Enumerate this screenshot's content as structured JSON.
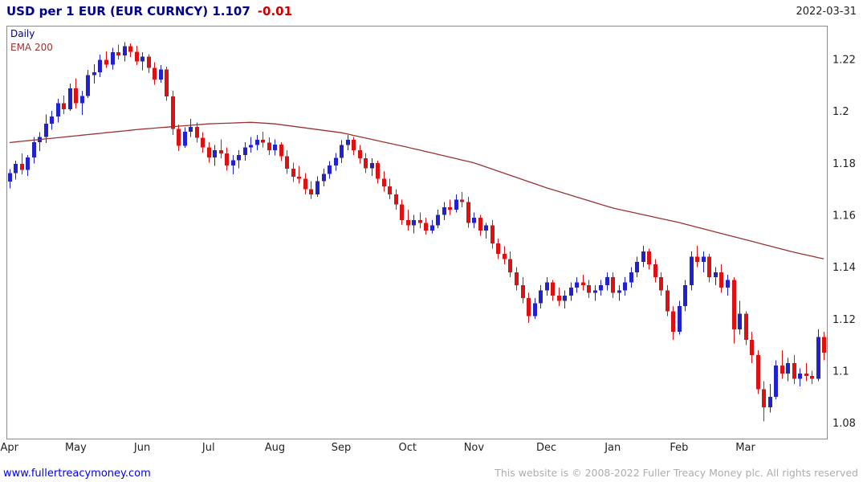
{
  "header": {
    "title": "USD per 1 EUR (EUR CURNCY) 1.107",
    "change": "-0.01",
    "date": "2022-03-31"
  },
  "legend": {
    "series": "Daily",
    "ema": "EMA 200"
  },
  "footer": {
    "site": "www.fullertreacymoney.com",
    "copyright": "This website is © 2008-2022 Fuller Treacy Money plc. All rights reserved"
  },
  "colors": {
    "title": "#00008B",
    "change": "#CC0000",
    "up": "#2222CC",
    "down": "#DD1111",
    "ema": "#993333",
    "axis": "#222222",
    "border": "#8A8A8A",
    "link": "#0000EE",
    "copyright": "#ADADAD"
  },
  "chart_data": {
    "type": "candlestick",
    "title": "USD per 1 EUR (EUR CURNCY)",
    "subtitle": "Daily with EMA 200",
    "last_price": 1.107,
    "change": -0.01,
    "date": "2022-03-31",
    "legend": [
      "Daily",
      "EMA 200"
    ],
    "x_labels": [
      "Apr",
      "May",
      "Jun",
      "Jul",
      "Aug",
      "Sep",
      "Oct",
      "Nov",
      "Dec",
      "Jan",
      "Feb",
      "Mar"
    ],
    "month_start_indices": [
      0,
      11,
      22,
      33,
      44,
      55,
      66,
      77,
      89,
      100,
      111,
      122
    ],
    "y_ticks": [
      1.22,
      1.2,
      1.18,
      1.16,
      1.14,
      1.12,
      1.1,
      1.08
    ],
    "ylim": [
      1.074,
      1.233
    ],
    "grid": false,
    "candles": [
      [
        1.173,
        1.1778,
        1.1704,
        1.1762
      ],
      [
        1.1762,
        1.181,
        1.1738,
        1.1798
      ],
      [
        1.1798,
        1.1838,
        1.1758,
        1.1775
      ],
      [
        1.1775,
        1.1832,
        1.1752,
        1.1822
      ],
      [
        1.1822,
        1.1902,
        1.18,
        1.1882
      ],
      [
        1.1882,
        1.192,
        1.1848,
        1.1901
      ],
      [
        1.1901,
        1.1988,
        1.1878,
        1.1952
      ],
      [
        1.1952,
        1.2002,
        1.193,
        1.1981
      ],
      [
        1.1981,
        1.2048,
        1.1958,
        1.2031
      ],
      [
        1.2031,
        1.2061,
        1.1989,
        1.2009
      ],
      [
        1.2009,
        1.2108,
        1.2002,
        1.2088
      ],
      [
        1.2088,
        1.2128,
        1.2012,
        1.2032
      ],
      [
        1.2032,
        1.208,
        1.1986,
        1.206
      ],
      [
        1.206,
        1.216,
        1.2051,
        1.214
      ],
      [
        1.214,
        1.2182,
        1.2108,
        1.2151
      ],
      [
        1.2151,
        1.2218,
        1.2132,
        1.2198
      ],
      [
        1.2198,
        1.2231,
        1.2168,
        1.218
      ],
      [
        1.218,
        1.2245,
        1.2161,
        1.2228
      ],
      [
        1.2228,
        1.2258,
        1.22,
        1.2216
      ],
      [
        1.2216,
        1.2266,
        1.2192,
        1.2251
      ],
      [
        1.2251,
        1.2262,
        1.2209,
        1.223
      ],
      [
        1.223,
        1.2252,
        1.2178,
        1.2192
      ],
      [
        1.2192,
        1.2228,
        1.2158,
        1.2211
      ],
      [
        1.2211,
        1.222,
        1.2148,
        1.2168
      ],
      [
        1.2168,
        1.219,
        1.2102,
        1.2122
      ],
      [
        1.2122,
        1.2178,
        1.211,
        1.2161
      ],
      [
        1.2161,
        1.2172,
        1.204,
        1.2058
      ],
      [
        1.2058,
        1.208,
        1.191,
        1.1932
      ],
      [
        1.1932,
        1.195,
        1.1848,
        1.1868
      ],
      [
        1.1868,
        1.1938,
        1.186,
        1.1921
      ],
      [
        1.1921,
        1.1971,
        1.1902,
        1.194
      ],
      [
        1.194,
        1.1958,
        1.188,
        1.1898
      ],
      [
        1.1898,
        1.192,
        1.1841,
        1.1861
      ],
      [
        1.1861,
        1.1882,
        1.1802,
        1.1822
      ],
      [
        1.1822,
        1.187,
        1.179,
        1.1851
      ],
      [
        1.1851,
        1.1892,
        1.182,
        1.1838
      ],
      [
        1.1838,
        1.1862,
        1.1772,
        1.1791
      ],
      [
        1.1791,
        1.1832,
        1.1758,
        1.1812
      ],
      [
        1.1812,
        1.1851,
        1.1781,
        1.1832
      ],
      [
        1.1832,
        1.1881,
        1.181,
        1.1862
      ],
      [
        1.1862,
        1.1902,
        1.1841,
        1.1871
      ],
      [
        1.1871,
        1.191,
        1.185,
        1.1891
      ],
      [
        1.1891,
        1.1922,
        1.1862,
        1.188
      ],
      [
        1.188,
        1.19,
        1.1832,
        1.1851
      ],
      [
        1.1851,
        1.1892,
        1.1831,
        1.1872
      ],
      [
        1.1872,
        1.1881,
        1.1808,
        1.1828
      ],
      [
        1.1828,
        1.185,
        1.176,
        1.1779
      ],
      [
        1.1779,
        1.1802,
        1.1728,
        1.1748
      ],
      [
        1.1748,
        1.179,
        1.1722,
        1.1741
      ],
      [
        1.1741,
        1.1762,
        1.168,
        1.17
      ],
      [
        1.17,
        1.1731,
        1.1664,
        1.1681
      ],
      [
        1.1681,
        1.175,
        1.1671,
        1.1731
      ],
      [
        1.1731,
        1.1779,
        1.1711,
        1.176
      ],
      [
        1.176,
        1.1809,
        1.1741,
        1.1791
      ],
      [
        1.1791,
        1.184,
        1.1771,
        1.1821
      ],
      [
        1.1821,
        1.1889,
        1.1801,
        1.1871
      ],
      [
        1.1871,
        1.1909,
        1.1851,
        1.189
      ],
      [
        1.189,
        1.1902,
        1.1832,
        1.1851
      ],
      [
        1.1851,
        1.1871,
        1.18,
        1.182
      ],
      [
        1.182,
        1.184,
        1.1762,
        1.1781
      ],
      [
        1.1781,
        1.182,
        1.1751,
        1.1801
      ],
      [
        1.1801,
        1.1811,
        1.1722,
        1.1741
      ],
      [
        1.1741,
        1.177,
        1.1691,
        1.1711
      ],
      [
        1.1711,
        1.174,
        1.1662,
        1.1681
      ],
      [
        1.1681,
        1.1701,
        1.1622,
        1.1641
      ],
      [
        1.1641,
        1.1661,
        1.1563,
        1.1581
      ],
      [
        1.1581,
        1.1621,
        1.1541,
        1.1561
      ],
      [
        1.1561,
        1.1601,
        1.1531,
        1.1581
      ],
      [
        1.1581,
        1.1611,
        1.1551,
        1.1571
      ],
      [
        1.1571,
        1.1591,
        1.1525,
        1.1541
      ],
      [
        1.1541,
        1.1581,
        1.153,
        1.1561
      ],
      [
        1.1561,
        1.1621,
        1.1551,
        1.1601
      ],
      [
        1.1601,
        1.1651,
        1.1581,
        1.1631
      ],
      [
        1.1631,
        1.1661,
        1.1601,
        1.1621
      ],
      [
        1.1621,
        1.1681,
        1.1611,
        1.1661
      ],
      [
        1.1661,
        1.169,
        1.1631,
        1.1651
      ],
      [
        1.1651,
        1.1671,
        1.1552,
        1.1571
      ],
      [
        1.1571,
        1.1611,
        1.1551,
        1.1591
      ],
      [
        1.1591,
        1.1601,
        1.1521,
        1.1541
      ],
      [
        1.1541,
        1.1571,
        1.1511,
        1.1561
      ],
      [
        1.1561,
        1.1581,
        1.1471,
        1.1491
      ],
      [
        1.1491,
        1.1511,
        1.1431,
        1.1451
      ],
      [
        1.1451,
        1.1481,
        1.1411,
        1.1431
      ],
      [
        1.1431,
        1.1461,
        1.1361,
        1.1381
      ],
      [
        1.1381,
        1.1401,
        1.1311,
        1.1331
      ],
      [
        1.1331,
        1.1361,
        1.1261,
        1.1281
      ],
      [
        1.1281,
        1.1301,
        1.1186,
        1.1211
      ],
      [
        1.1211,
        1.1281,
        1.1201,
        1.1261
      ],
      [
        1.1261,
        1.1331,
        1.1241,
        1.1311
      ],
      [
        1.1311,
        1.1361,
        1.1291,
        1.1341
      ],
      [
        1.1341,
        1.1351,
        1.1271,
        1.1291
      ],
      [
        1.1291,
        1.1321,
        1.1251,
        1.1271
      ],
      [
        1.1271,
        1.1311,
        1.1241,
        1.1291
      ],
      [
        1.1291,
        1.1341,
        1.1271,
        1.1321
      ],
      [
        1.1321,
        1.1361,
        1.1301,
        1.1341
      ],
      [
        1.1341,
        1.1371,
        1.1311,
        1.1331
      ],
      [
        1.1331,
        1.1351,
        1.1281,
        1.1301
      ],
      [
        1.1301,
        1.1331,
        1.1271,
        1.1311
      ],
      [
        1.1311,
        1.1351,
        1.1291,
        1.1331
      ],
      [
        1.1331,
        1.1381,
        1.1311,
        1.1361
      ],
      [
        1.1361,
        1.1381,
        1.1281,
        1.1301
      ],
      [
        1.1301,
        1.1331,
        1.1271,
        1.1311
      ],
      [
        1.1311,
        1.1361,
        1.1291,
        1.1341
      ],
      [
        1.1341,
        1.1401,
        1.1321,
        1.1381
      ],
      [
        1.1381,
        1.1441,
        1.1361,
        1.1421
      ],
      [
        1.1421,
        1.1483,
        1.1401,
        1.1461
      ],
      [
        1.1461,
        1.1471,
        1.1391,
        1.1411
      ],
      [
        1.1411,
        1.1431,
        1.1341,
        1.1361
      ],
      [
        1.1361,
        1.1381,
        1.1291,
        1.1311
      ],
      [
        1.1311,
        1.1331,
        1.1211,
        1.1231
      ],
      [
        1.1231,
        1.1251,
        1.1121,
        1.1151
      ],
      [
        1.1151,
        1.1271,
        1.1141,
        1.1251
      ],
      [
        1.1251,
        1.1351,
        1.1231,
        1.1331
      ],
      [
        1.1331,
        1.1461,
        1.1311,
        1.1441
      ],
      [
        1.1441,
        1.1483,
        1.1401,
        1.1421
      ],
      [
        1.1421,
        1.1461,
        1.1381,
        1.1441
      ],
      [
        1.1441,
        1.1451,
        1.1341,
        1.1361
      ],
      [
        1.1361,
        1.1401,
        1.1331,
        1.1381
      ],
      [
        1.1381,
        1.1411,
        1.1301,
        1.1321
      ],
      [
        1.1321,
        1.1371,
        1.1291,
        1.1351
      ],
      [
        1.1351,
        1.1361,
        1.1106,
        1.1161
      ],
      [
        1.1161,
        1.1271,
        1.1141,
        1.1221
      ],
      [
        1.1221,
        1.1231,
        1.1101,
        1.1121
      ],
      [
        1.1121,
        1.1151,
        1.1031,
        1.1061
      ],
      [
        1.1061,
        1.1081,
        1.0911,
        1.0931
      ],
      [
        1.0931,
        1.0961,
        1.0806,
        1.0861
      ],
      [
        1.0861,
        1.0951,
        1.0841,
        1.0901
      ],
      [
        1.0901,
        1.1041,
        1.0891,
        1.1021
      ],
      [
        1.1021,
        1.1081,
        1.0971,
        1.0991
      ],
      [
        1.0991,
        1.1051,
        1.0961,
        1.1031
      ],
      [
        1.1031,
        1.1061,
        1.0951,
        1.0971
      ],
      [
        1.0971,
        1.1011,
        1.0941,
        1.0991
      ],
      [
        1.0991,
        1.1031,
        1.0961,
        1.0981
      ],
      [
        1.0981,
        1.1001,
        1.0951,
        1.0971
      ],
      [
        1.0971,
        1.1161,
        1.0961,
        1.1131
      ],
      [
        1.1131,
        1.1151,
        1.1041,
        1.1071
      ]
    ],
    "ema200_anchors": [
      [
        0,
        1.188
      ],
      [
        11,
        1.1906
      ],
      [
        22,
        1.1932
      ],
      [
        33,
        1.1952
      ],
      [
        40,
        1.1958
      ],
      [
        44,
        1.1952
      ],
      [
        55,
        1.1918
      ],
      [
        66,
        1.1862
      ],
      [
        77,
        1.1802
      ],
      [
        89,
        1.1706
      ],
      [
        100,
        1.1628
      ],
      [
        111,
        1.1572
      ],
      [
        122,
        1.1506
      ],
      [
        130,
        1.1458
      ],
      [
        135,
        1.1432
      ]
    ]
  }
}
